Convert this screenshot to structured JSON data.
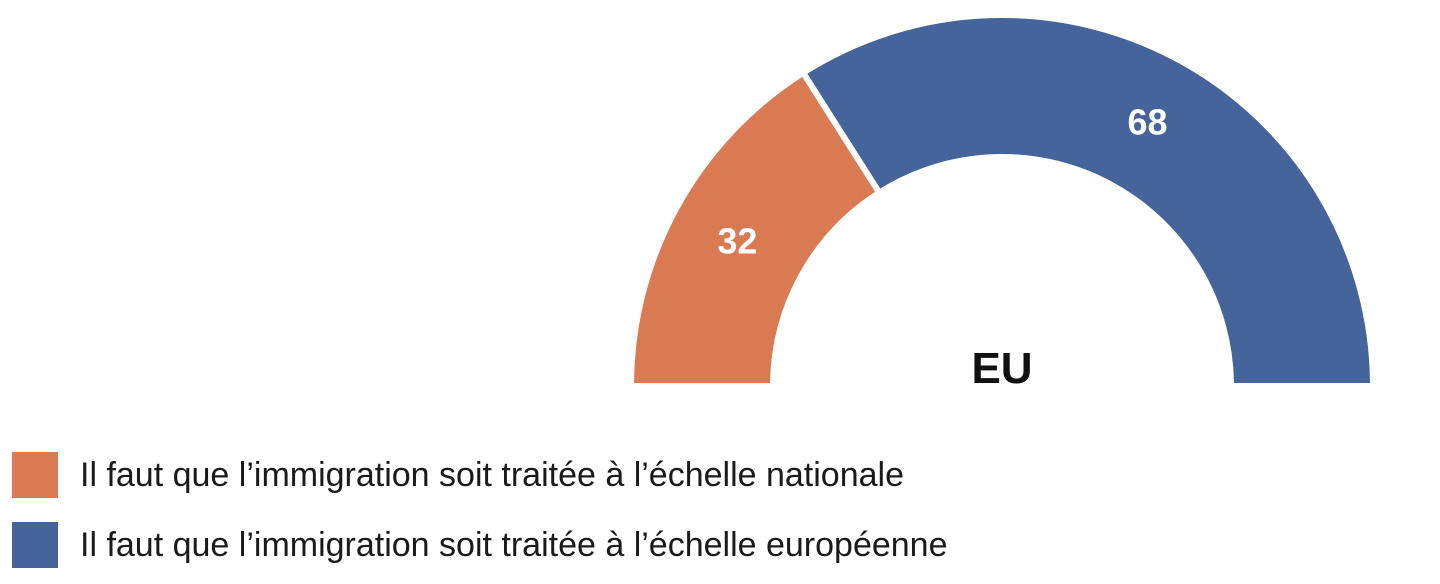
{
  "chart_data": {
    "type": "pie",
    "center_label": "EU",
    "categories": [
      "Il faut que l’immigration soit traitée à l’échelle nationale",
      "Il faut que l’immigration soit traitée à l’échelle européenne"
    ],
    "values": [
      32,
      68
    ],
    "colors": [
      "#D97A53",
      "#45649B"
    ],
    "legend_position": "bottom-left"
  }
}
